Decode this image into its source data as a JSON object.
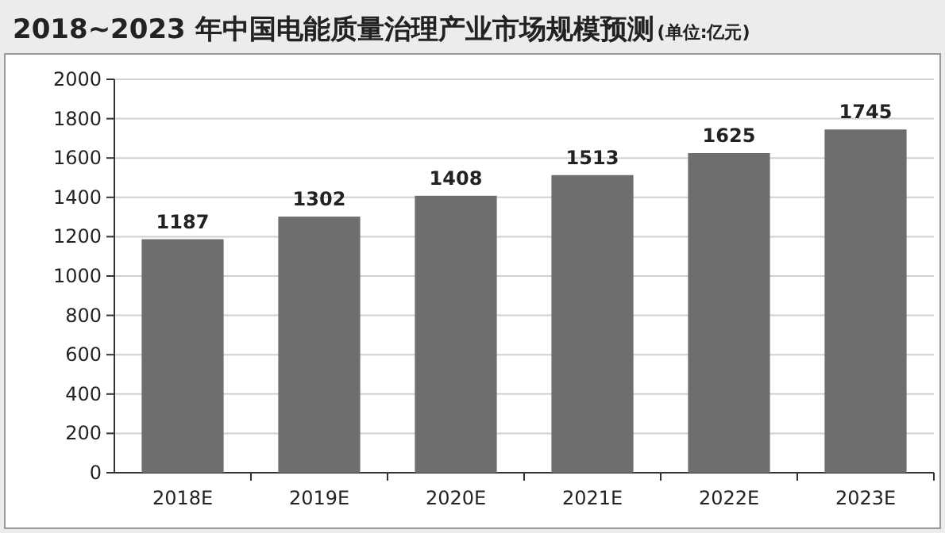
{
  "chart_data": {
    "type": "bar",
    "title": "2018~2023 年中国电能质量治理产业市场规模预测",
    "subtitle": "(单位:亿元)",
    "categories": [
      "2018E",
      "2019E",
      "2020E",
      "2021E",
      "2022E",
      "2023E"
    ],
    "series": [
      {
        "color": "#6e6e6e",
        "values": [
          1187,
          1302,
          1408,
          1513,
          1625,
          1745
        ]
      }
    ],
    "ylim": [
      0,
      2000
    ],
    "yticks": [
      0,
      200,
      400,
      600,
      800,
      1000,
      1200,
      1400,
      1600,
      1800,
      2000
    ],
    "grid": "y",
    "data_labels": true
  }
}
